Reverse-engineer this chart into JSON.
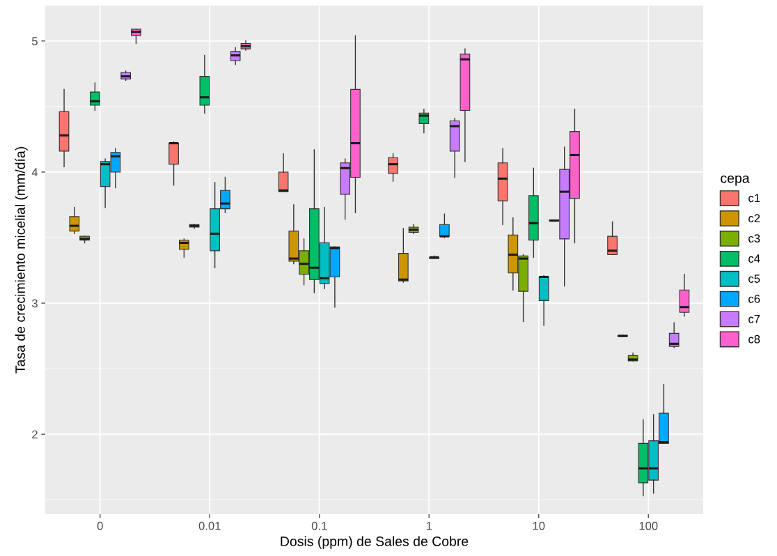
{
  "chart_data": {
    "type": "box",
    "xlabel": "Dosis (ppm) de Sales de Cobre",
    "ylabel": "Tasa de crecimiento micelial (mm/día)",
    "legend_title": "cepa",
    "legend": "right",
    "grid": true,
    "categories": [
      "0",
      "0.01",
      "0.1",
      "1",
      "10",
      "100"
    ],
    "ylim": [
      1.39,
      5.27
    ],
    "yticks": [
      2,
      3,
      4,
      5
    ],
    "series": [
      {
        "name": "c1",
        "color": "#f8766d",
        "boxes": [
          {
            "low": 4.04,
            "q1": 4.16,
            "median": 4.28,
            "q3": 4.46,
            "high": 4.63
          },
          {
            "low": 3.9,
            "q1": 4.06,
            "median": 4.22,
            "q3": 4.22,
            "high": 4.23
          },
          {
            "low": 3.85,
            "q1": 3.85,
            "median": 3.86,
            "q3": 4.0,
            "high": 4.14
          },
          {
            "low": 3.93,
            "q1": 3.99,
            "median": 4.06,
            "q3": 4.11,
            "high": 4.14
          },
          {
            "low": 3.6,
            "q1": 3.78,
            "median": 3.95,
            "q3": 4.07,
            "high": 4.18
          },
          {
            "low": 3.37,
            "q1": 3.37,
            "median": 3.4,
            "q3": 3.51,
            "high": 3.62
          }
        ]
      },
      {
        "name": "c2",
        "color": "#cd9600",
        "boxes": [
          {
            "low": 3.53,
            "q1": 3.55,
            "median": 3.59,
            "q3": 3.66,
            "high": 3.73
          },
          {
            "low": 3.35,
            "q1": 3.41,
            "median": 3.46,
            "q3": 3.48,
            "high": 3.49
          },
          {
            "low": 3.3,
            "q1": 3.32,
            "median": 3.34,
            "q3": 3.55,
            "high": 3.75
          },
          {
            "low": 3.16,
            "q1": 3.17,
            "median": 3.18,
            "q3": 3.38,
            "high": 3.57
          },
          {
            "low": 3.1,
            "q1": 3.23,
            "median": 3.37,
            "q3": 3.52,
            "high": 3.65
          },
          {
            "low": 2.745,
            "q1": 2.745,
            "median": 2.75,
            "q3": 2.755,
            "high": 2.755
          }
        ]
      },
      {
        "name": "c3",
        "color": "#7cae00",
        "boxes": [
          {
            "low": 3.46,
            "q1": 3.48,
            "median": 3.49,
            "q3": 3.51,
            "high": 3.51
          },
          {
            "low": 3.57,
            "q1": 3.58,
            "median": 3.59,
            "q3": 3.6,
            "high": 3.6
          },
          {
            "low": 3.14,
            "q1": 3.22,
            "median": 3.3,
            "q3": 3.4,
            "high": 3.49
          },
          {
            "low": 3.53,
            "q1": 3.54,
            "median": 3.56,
            "q3": 3.58,
            "high": 3.6
          },
          {
            "low": 2.86,
            "q1": 3.09,
            "median": 3.34,
            "q3": 3.36,
            "high": 3.37
          },
          {
            "low": 2.56,
            "q1": 2.56,
            "median": 2.57,
            "q3": 2.6,
            "high": 2.62
          }
        ]
      },
      {
        "name": "c4",
        "color": "#00be67",
        "boxes": [
          {
            "low": 4.47,
            "q1": 4.51,
            "median": 4.54,
            "q3": 4.61,
            "high": 4.68
          },
          {
            "low": 4.45,
            "q1": 4.51,
            "median": 4.57,
            "q3": 4.73,
            "high": 4.89
          },
          {
            "low": 3.08,
            "q1": 3.18,
            "median": 3.27,
            "q3": 3.72,
            "high": 4.17
          },
          {
            "low": 4.3,
            "q1": 4.37,
            "median": 4.43,
            "q3": 4.45,
            "high": 4.48
          },
          {
            "low": 3.35,
            "q1": 3.48,
            "median": 3.61,
            "q3": 3.82,
            "high": 4.03
          },
          {
            "low": 1.53,
            "q1": 1.63,
            "median": 1.74,
            "q3": 1.93,
            "high": 2.11
          }
        ]
      },
      {
        "name": "c5",
        "color": "#00bfc4",
        "boxes": [
          {
            "low": 3.73,
            "q1": 3.89,
            "median": 4.06,
            "q3": 4.08,
            "high": 4.1
          },
          {
            "low": 3.27,
            "q1": 3.4,
            "median": 3.53,
            "q3": 3.72,
            "high": 3.92
          },
          {
            "low": 3.11,
            "q1": 3.15,
            "median": 3.19,
            "q3": 3.46,
            "high": 3.73
          },
          {
            "low": 3.34,
            "q1": 3.34,
            "median": 3.35,
            "q3": 3.35,
            "high": 3.36
          },
          {
            "low": 2.83,
            "q1": 3.02,
            "median": 3.2,
            "q3": 3.2,
            "high": 3.21
          },
          {
            "low": 1.55,
            "q1": 1.65,
            "median": 1.74,
            "q3": 1.95,
            "high": 2.15
          }
        ]
      },
      {
        "name": "c6",
        "color": "#00a9ff",
        "boxes": [
          {
            "low": 3.88,
            "q1": 4.0,
            "median": 4.12,
            "q3": 4.15,
            "high": 4.18
          },
          {
            "low": 3.69,
            "q1": 3.72,
            "median": 3.76,
            "q3": 3.86,
            "high": 3.96
          },
          {
            "low": 2.97,
            "q1": 3.2,
            "median": 3.42,
            "q3": 3.43,
            "high": 3.43
          },
          {
            "low": 3.5,
            "q1": 3.51,
            "median": 3.51,
            "q3": 3.6,
            "high": 3.68
          },
          {
            "low": 3.625,
            "q1": 3.625,
            "median": 3.63,
            "q3": 3.635,
            "high": 3.635
          },
          {
            "low": 1.93,
            "q1": 1.93,
            "median": 1.94,
            "q3": 2.16,
            "high": 2.38
          }
        ]
      },
      {
        "name": "c7",
        "color": "#c77cff",
        "boxes": [
          {
            "low": 4.7,
            "q1": 4.71,
            "median": 4.73,
            "q3": 4.76,
            "high": 4.77
          },
          {
            "low": 4.82,
            "q1": 4.85,
            "median": 4.89,
            "q3": 4.92,
            "high": 4.95
          },
          {
            "low": 3.64,
            "q1": 3.83,
            "median": 4.03,
            "q3": 4.07,
            "high": 4.1
          },
          {
            "low": 3.96,
            "q1": 4.16,
            "median": 4.35,
            "q3": 4.39,
            "high": 4.41
          },
          {
            "low": 3.13,
            "q1": 3.49,
            "median": 3.85,
            "q3": 4.02,
            "high": 4.19
          },
          {
            "low": 2.66,
            "q1": 2.67,
            "median": 2.69,
            "q3": 2.77,
            "high": 2.85
          }
        ]
      },
      {
        "name": "c8",
        "color": "#ff61cc",
        "boxes": [
          {
            "low": 4.98,
            "q1": 5.04,
            "median": 5.07,
            "q3": 5.09,
            "high": 5.09
          },
          {
            "low": 4.93,
            "q1": 4.94,
            "median": 4.96,
            "q3": 4.98,
            "high": 5.0
          },
          {
            "low": 3.69,
            "q1": 3.96,
            "median": 4.22,
            "q3": 4.63,
            "high": 5.04
          },
          {
            "low": 4.08,
            "q1": 4.47,
            "median": 4.86,
            "q3": 4.9,
            "high": 4.94
          },
          {
            "low": 3.46,
            "q1": 3.8,
            "median": 4.13,
            "q3": 4.31,
            "high": 4.48
          },
          {
            "low": 2.9,
            "q1": 2.93,
            "median": 2.97,
            "q3": 3.1,
            "high": 3.22
          }
        ]
      }
    ]
  }
}
